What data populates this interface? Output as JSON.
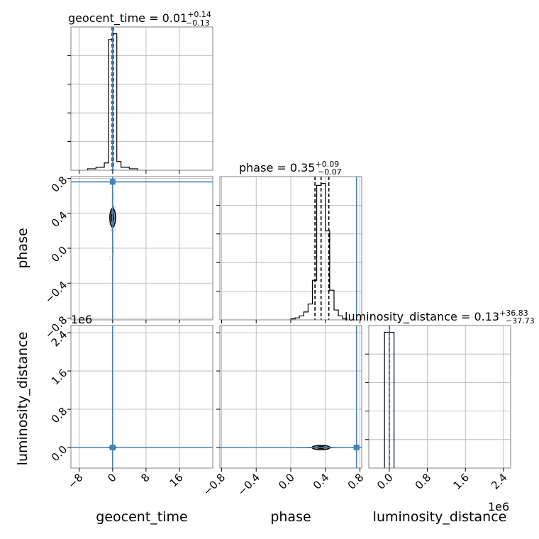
{
  "chart_data": {
    "type": "corner",
    "parameters": [
      "geocent_time",
      "phase",
      "luminosity_distance"
    ],
    "axis_labels": [
      "geocent_time",
      "phase",
      "luminosity_distance"
    ],
    "titles": [
      {
        "param": "geocent_time",
        "text": "geocent_time = 0.01",
        "sup": "+0.14",
        "sub": "−0.13"
      },
      {
        "param": "phase",
        "text": "phase = 0.35",
        "sup": "+0.09",
        "sub": "−0.07"
      },
      {
        "param": "luminosity_distance",
        "text": "luminosity_distance = 0.13",
        "sup": "+36.83",
        "sub": "−37.73"
      }
    ],
    "ranges": {
      "geocent_time": [
        -10,
        24
      ],
      "phase": [
        -0.82,
        0.82
      ],
      "luminosity_distance": [
        -430000,
        2550000
      ]
    },
    "ticks": {
      "geocent_time": {
        "values": [
          -8,
          0,
          8,
          16
        ],
        "labels": [
          "−8",
          "0",
          "8",
          "16"
        ]
      },
      "phase": {
        "values": [
          -0.8,
          -0.4,
          0.0,
          0.4,
          0.8
        ],
        "labels": [
          "−0.8",
          "−0.4",
          "0.0",
          "0.4",
          "0.8"
        ]
      },
      "luminosity_distance": {
        "values": [
          0,
          800000,
          1600000,
          2400000
        ],
        "labels": [
          "0.0",
          "0.8",
          "1.6",
          "2.4"
        ]
      }
    },
    "offset_text": "1e6",
    "injection": {
      "geocent_time": 0.0,
      "phase": 0.76,
      "luminosity_distance": 0.0
    },
    "injection_color": "#4682b4",
    "quantiles": {
      "geocent_time": [
        -0.12,
        0.01,
        0.15
      ],
      "phase": [
        0.28,
        0.35,
        0.44
      ],
      "luminosity_distance": [
        -37.6,
        0.13,
        36.96
      ]
    },
    "histograms": {
      "geocent_time": {
        "edges": [
          -6,
          -4,
          -2,
          -1,
          0,
          1,
          2,
          4,
          6
        ],
        "counts": [
          1,
          2,
          5,
          90,
          94,
          6,
          2,
          1
        ]
      },
      "phase": {
        "edges": [
          0.0,
          0.05,
          0.1,
          0.15,
          0.2,
          0.25,
          0.3,
          0.35,
          0.4,
          0.45,
          0.5,
          0.55,
          0.6,
          0.65
        ],
        "counts": [
          0.5,
          1,
          2,
          4,
          8,
          20,
          68,
          69,
          45,
          15,
          5,
          2,
          0.5
        ]
      },
      "luminosity_distance": {
        "edges": [
          -100000,
          0,
          100000
        ],
        "counts": [
          92,
          92
        ]
      }
    },
    "grid": true
  }
}
